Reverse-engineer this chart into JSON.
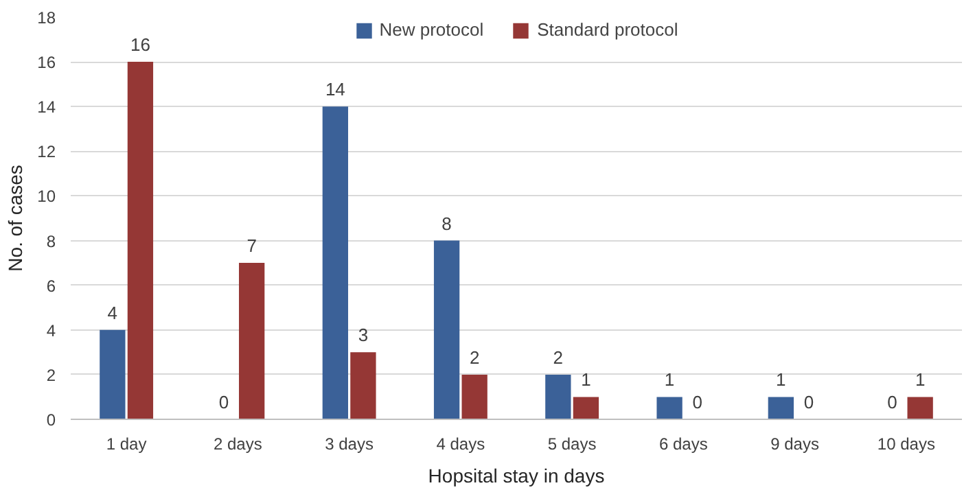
{
  "chart_data": {
    "type": "bar",
    "xlabel": "Hopsital stay in days",
    "ylabel": "No. of cases",
    "categories": [
      "1 day",
      "2 days",
      "3 days",
      "4 days",
      "5 days",
      "6 days",
      "9 days",
      "10 days"
    ],
    "series": [
      {
        "name": "New protocol",
        "color": "#3b6198",
        "values": [
          4,
          0,
          14,
          8,
          2,
          1,
          1,
          0
        ]
      },
      {
        "name": "Standard protocol",
        "color": "#953735",
        "values": [
          16,
          7,
          3,
          2,
          1,
          0,
          0,
          1
        ]
      }
    ],
    "ylim": [
      0,
      18
    ],
    "yticks": [
      0,
      2,
      4,
      6,
      8,
      10,
      12,
      14,
      16,
      18
    ],
    "grid": "y",
    "legend": "top",
    "data_labels": true
  }
}
